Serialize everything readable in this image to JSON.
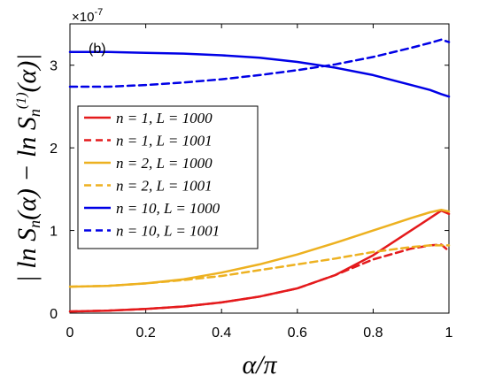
{
  "chart_data": {
    "type": "line",
    "panel_label": "(b)",
    "exponent_label": "×10",
    "exponent_power": "-7",
    "xlabel": "α/π",
    "ylabel": "|ln S_n(α) − ln S_n^(1)(α)|",
    "xlim": [
      0,
      1
    ],
    "ylim": [
      0,
      3.5
    ],
    "xticks": [
      "0",
      "0.2",
      "0.4",
      "0.6",
      "0.8",
      "1"
    ],
    "yticks": [
      "0",
      "1",
      "2",
      "3"
    ],
    "grid": false,
    "legend_position": "left-middle",
    "series": [
      {
        "name": "n = 1, L = 1000",
        "color": "#e41a1c",
        "style": "solid",
        "x": [
          0,
          0.1,
          0.2,
          0.3,
          0.4,
          0.5,
          0.6,
          0.7,
          0.8,
          0.9,
          0.95,
          0.98,
          1.0
        ],
        "y": [
          0.02,
          0.03,
          0.05,
          0.08,
          0.13,
          0.2,
          0.3,
          0.46,
          0.7,
          1.0,
          1.15,
          1.24,
          1.2
        ]
      },
      {
        "name": "n = 1, L = 1001",
        "color": "#e41a1c",
        "style": "dashed",
        "x": [
          0,
          0.1,
          0.2,
          0.3,
          0.4,
          0.5,
          0.6,
          0.7,
          0.8,
          0.9,
          0.95,
          0.98,
          1.0
        ],
        "y": [
          0.02,
          0.03,
          0.05,
          0.08,
          0.13,
          0.2,
          0.3,
          0.46,
          0.65,
          0.78,
          0.82,
          0.83,
          0.75
        ]
      },
      {
        "name": "n = 2, L = 1000",
        "color": "#edb120",
        "style": "solid",
        "x": [
          0,
          0.1,
          0.2,
          0.3,
          0.4,
          0.5,
          0.6,
          0.7,
          0.8,
          0.9,
          0.95,
          0.98,
          1.0
        ],
        "y": [
          0.32,
          0.33,
          0.36,
          0.41,
          0.49,
          0.59,
          0.71,
          0.85,
          1.0,
          1.15,
          1.22,
          1.25,
          1.23
        ]
      },
      {
        "name": "n = 2, L = 1001",
        "color": "#edb120",
        "style": "dashed",
        "x": [
          0,
          0.1,
          0.2,
          0.3,
          0.4,
          0.5,
          0.6,
          0.7,
          0.8,
          0.9,
          0.95,
          0.98,
          1.0
        ],
        "y": [
          0.32,
          0.33,
          0.36,
          0.4,
          0.45,
          0.52,
          0.59,
          0.66,
          0.74,
          0.8,
          0.82,
          0.82,
          0.82
        ]
      },
      {
        "name": "n = 10, L = 1000",
        "color": "#0000e6",
        "style": "solid",
        "x": [
          0,
          0.1,
          0.2,
          0.3,
          0.4,
          0.5,
          0.6,
          0.7,
          0.8,
          0.9,
          0.95,
          0.98,
          1.0
        ],
        "y": [
          3.16,
          3.16,
          3.15,
          3.14,
          3.12,
          3.09,
          3.04,
          2.97,
          2.88,
          2.76,
          2.7,
          2.65,
          2.62
        ]
      },
      {
        "name": "n = 10, L = 1001",
        "color": "#0000e6",
        "style": "dashed",
        "x": [
          0,
          0.1,
          0.2,
          0.3,
          0.4,
          0.5,
          0.6,
          0.7,
          0.8,
          0.9,
          0.95,
          0.98,
          1.0
        ],
        "y": [
          2.74,
          2.74,
          2.76,
          2.79,
          2.83,
          2.88,
          2.94,
          3.01,
          3.1,
          3.21,
          3.27,
          3.31,
          3.28
        ]
      }
    ]
  }
}
